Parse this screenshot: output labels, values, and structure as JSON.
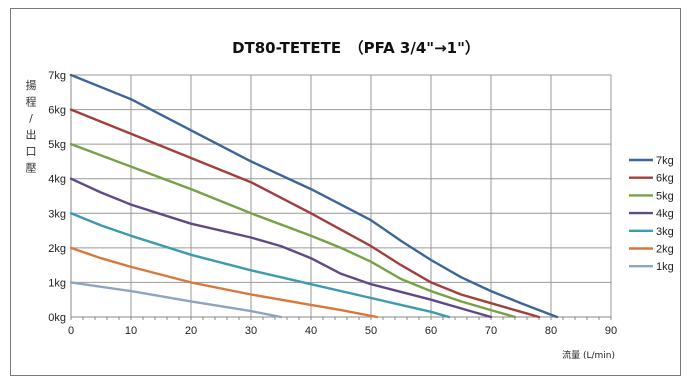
{
  "chart_data": {
    "type": "line",
    "title": "DT80-TETETE　（PFA 3/4\"→1\"）",
    "xlabel": "流量 (L/min)",
    "ylabel_chars": [
      "揚",
      "程",
      "/",
      "出",
      "口",
      "壓"
    ],
    "xlim": [
      0,
      90
    ],
    "ylim": [
      0,
      7
    ],
    "x_ticks": [
      "0",
      "10",
      "20",
      "30",
      "40",
      "50",
      "60",
      "70",
      "80",
      "90"
    ],
    "y_ticks": [
      "0kg",
      "1kg",
      "2kg",
      "3kg",
      "4kg",
      "5kg",
      "6kg",
      "7kg"
    ],
    "grid": true,
    "legend_position": "right",
    "series": [
      {
        "name": "7kg",
        "color": "#3e6598",
        "x": [
          0,
          10,
          20,
          30,
          40,
          50,
          55,
          60,
          65,
          70,
          75,
          81
        ],
        "y": [
          7,
          6.3,
          5.4,
          4.5,
          3.7,
          2.8,
          2.2,
          1.65,
          1.15,
          0.75,
          0.4,
          0
        ]
      },
      {
        "name": "6kg",
        "color": "#a0403e",
        "x": [
          0,
          10,
          20,
          30,
          40,
          50,
          55,
          60,
          65,
          70,
          75,
          78
        ],
        "y": [
          6,
          5.3,
          4.6,
          3.9,
          3.0,
          2.05,
          1.5,
          1.0,
          0.65,
          0.4,
          0.15,
          0
        ]
      },
      {
        "name": "5kg",
        "color": "#78a045",
        "x": [
          0,
          10,
          20,
          30,
          40,
          45,
          50,
          55,
          60,
          65,
          70,
          74
        ],
        "y": [
          5,
          4.35,
          3.7,
          3.0,
          2.35,
          2.0,
          1.6,
          1.1,
          0.75,
          0.45,
          0.2,
          0
        ]
      },
      {
        "name": "4kg",
        "color": "#5f4988",
        "x": [
          0,
          5,
          10,
          20,
          30,
          35,
          40,
          45,
          50,
          60,
          65,
          70
        ],
        "y": [
          4,
          3.6,
          3.25,
          2.7,
          2.3,
          2.05,
          1.7,
          1.25,
          0.95,
          0.5,
          0.25,
          0
        ]
      },
      {
        "name": "3kg",
        "color": "#3d9ab0",
        "x": [
          0,
          5,
          10,
          20,
          30,
          40,
          50,
          55,
          60,
          63
        ],
        "y": [
          3,
          2.65,
          2.35,
          1.8,
          1.35,
          0.95,
          0.55,
          0.35,
          0.15,
          0
        ]
      },
      {
        "name": "2kg",
        "color": "#d9783b",
        "x": [
          0,
          5,
          10,
          20,
          30,
          40,
          45,
          51
        ],
        "y": [
          2,
          1.7,
          1.45,
          1.0,
          0.65,
          0.35,
          0.2,
          0
        ]
      },
      {
        "name": "1kg",
        "color": "#8ea3c6",
        "x": [
          0,
          10,
          20,
          30,
          35
        ],
        "y": [
          1,
          0.75,
          0.45,
          0.17,
          0
        ]
      }
    ]
  }
}
